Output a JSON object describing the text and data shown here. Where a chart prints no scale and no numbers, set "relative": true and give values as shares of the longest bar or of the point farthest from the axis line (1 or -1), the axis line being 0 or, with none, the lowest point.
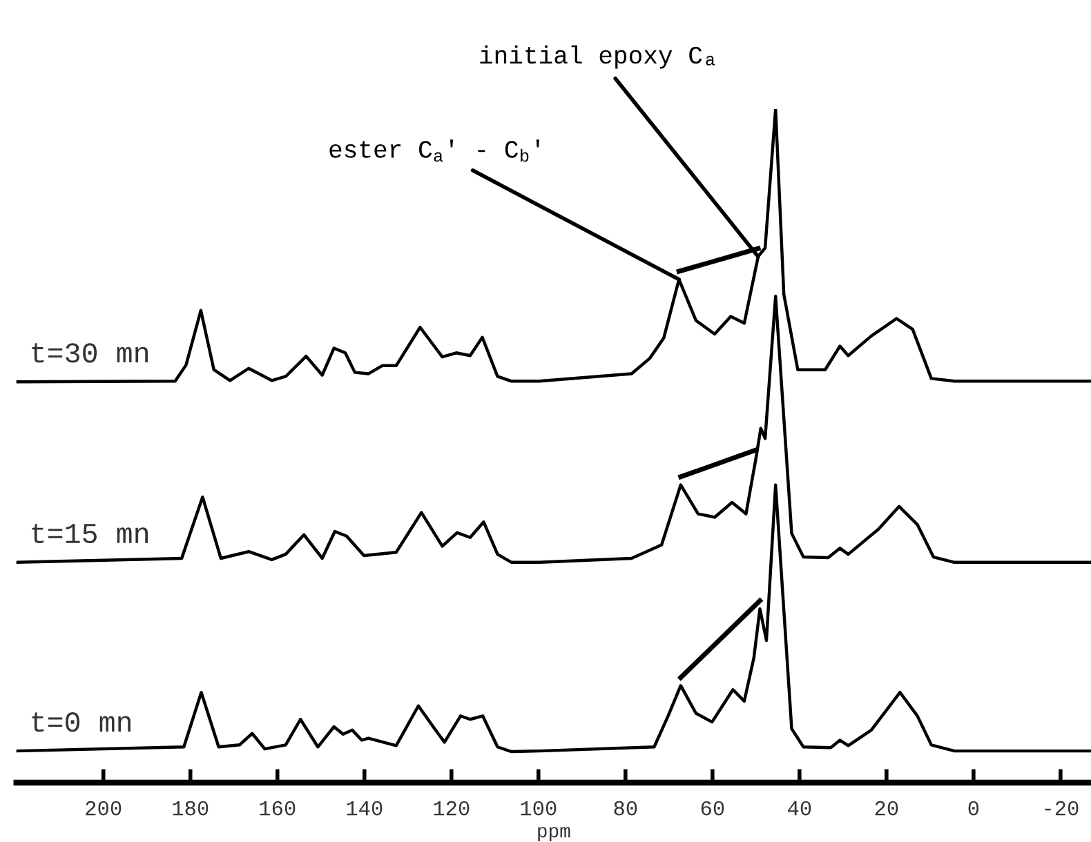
{
  "chart_data": {
    "type": "line",
    "relative": true,
    "xlabel": "ppm",
    "xlim": [
      220,
      -27
    ],
    "xticks": [
      200,
      180,
      160,
      140,
      120,
      100,
      80,
      60,
      40,
      20,
      0,
      -20
    ],
    "legend": false,
    "grid": false,
    "tick_labels": "x",
    "annotations": [
      {
        "text": "initial epoxy Cₐ",
        "x": 49.5,
        "y": 0.781
      },
      {
        "text": "ester C$_{a}$′ - C$_{b}$′",
        "x": 67.7,
        "y": 0.747
      }
    ],
    "series": [
      {
        "name": "t=30 mn",
        "color": "#000000",
        "x": [
          220,
          183.5,
          181,
          177.6,
          174.6,
          170.9,
          166.6,
          161.3,
          158.1,
          153.4,
          149.7,
          147,
          144.4,
          142.2,
          139.1,
          135.9,
          132.7,
          127.2,
          122.1,
          118.9,
          115.7,
          112.9,
          109.4,
          106.2,
          99.8,
          78.6,
          74.4,
          71.2,
          67.7,
          63.8,
          59.5,
          55.8,
          52.7,
          49.5,
          47.9,
          45.5,
          43.6,
          40.4,
          34.1,
          30.7,
          28.8,
          23.5,
          17.7,
          14,
          9.7,
          4.4,
          -27
        ],
        "values": [
          0.595,
          0.596,
          0.62,
          0.701,
          0.613,
          0.597,
          0.615,
          0.597,
          0.603,
          0.633,
          0.605,
          0.645,
          0.638,
          0.609,
          0.607,
          0.619,
          0.619,
          0.676,
          0.632,
          0.638,
          0.634,
          0.661,
          0.603,
          0.596,
          0.596,
          0.607,
          0.63,
          0.66,
          0.747,
          0.686,
          0.666,
          0.692,
          0.682,
          0.781,
          0.794,
          1.0,
          0.725,
          0.613,
          0.613,
          0.648,
          0.634,
          0.663,
          0.689,
          0.673,
          0.6,
          0.596,
          0.596
        ]
      },
      {
        "name": "t=15 mn",
        "color": "#000000",
        "x": [
          220,
          182,
          177.2,
          173,
          166.6,
          161.3,
          158.1,
          153.9,
          149.7,
          146.8,
          144.1,
          140.1,
          132.7,
          126.9,
          122.1,
          118.7,
          115.7,
          112.6,
          109.4,
          106.2,
          99.8,
          78.6,
          71.7,
          67.3,
          63.3,
          59.5,
          55.5,
          52.3,
          50,
          48.9,
          47.9,
          45.5,
          41.8,
          39.1,
          33.4,
          30.7,
          28.8,
          21.9,
          17.1,
          12.9,
          9.2,
          4.4,
          -27
        ],
        "values": [
          0.327,
          0.333,
          0.424,
          0.333,
          0.343,
          0.331,
          0.339,
          0.368,
          0.333,
          0.373,
          0.366,
          0.337,
          0.342,
          0.401,
          0.351,
          0.371,
          0.364,
          0.387,
          0.339,
          0.327,
          0.327,
          0.333,
          0.353,
          0.442,
          0.399,
          0.394,
          0.416,
          0.399,
          0.482,
          0.526,
          0.511,
          0.722,
          0.37,
          0.335,
          0.334,
          0.348,
          0.339,
          0.376,
          0.41,
          0.383,
          0.335,
          0.327,
          0.327
        ]
      },
      {
        "name": "t=0 mn",
        "color": "#000000",
        "x": [
          220,
          181.5,
          177.5,
          173.5,
          168.7,
          165.8,
          162.9,
          158.1,
          154.7,
          150.7,
          147,
          144.9,
          142.8,
          140.6,
          139.1,
          132.7,
          127.6,
          124.2,
          121.6,
          117.9,
          115.7,
          112.8,
          109.4,
          106.2,
          99.8,
          73.4,
          70.2,
          67.3,
          63.8,
          60.1,
          55.3,
          52.7,
          50.5,
          49.1,
          47.6,
          45.5,
          41.8,
          39.1,
          32.8,
          30.7,
          28.8,
          23.5,
          16.9,
          12.9,
          9.7,
          4.4,
          -27
        ],
        "values": [
          0.047,
          0.053,
          0.134,
          0.053,
          0.056,
          0.073,
          0.05,
          0.056,
          0.094,
          0.053,
          0.083,
          0.072,
          0.078,
          0.063,
          0.066,
          0.055,
          0.114,
          0.083,
          0.06,
          0.099,
          0.094,
          0.099,
          0.053,
          0.046,
          0.047,
          0.053,
          0.099,
          0.144,
          0.103,
          0.09,
          0.138,
          0.121,
          0.185,
          0.258,
          0.211,
          0.442,
          0.08,
          0.053,
          0.052,
          0.063,
          0.055,
          0.078,
          0.134,
          0.099,
          0.056,
          0.047,
          0.047
        ]
      }
    ]
  }
}
